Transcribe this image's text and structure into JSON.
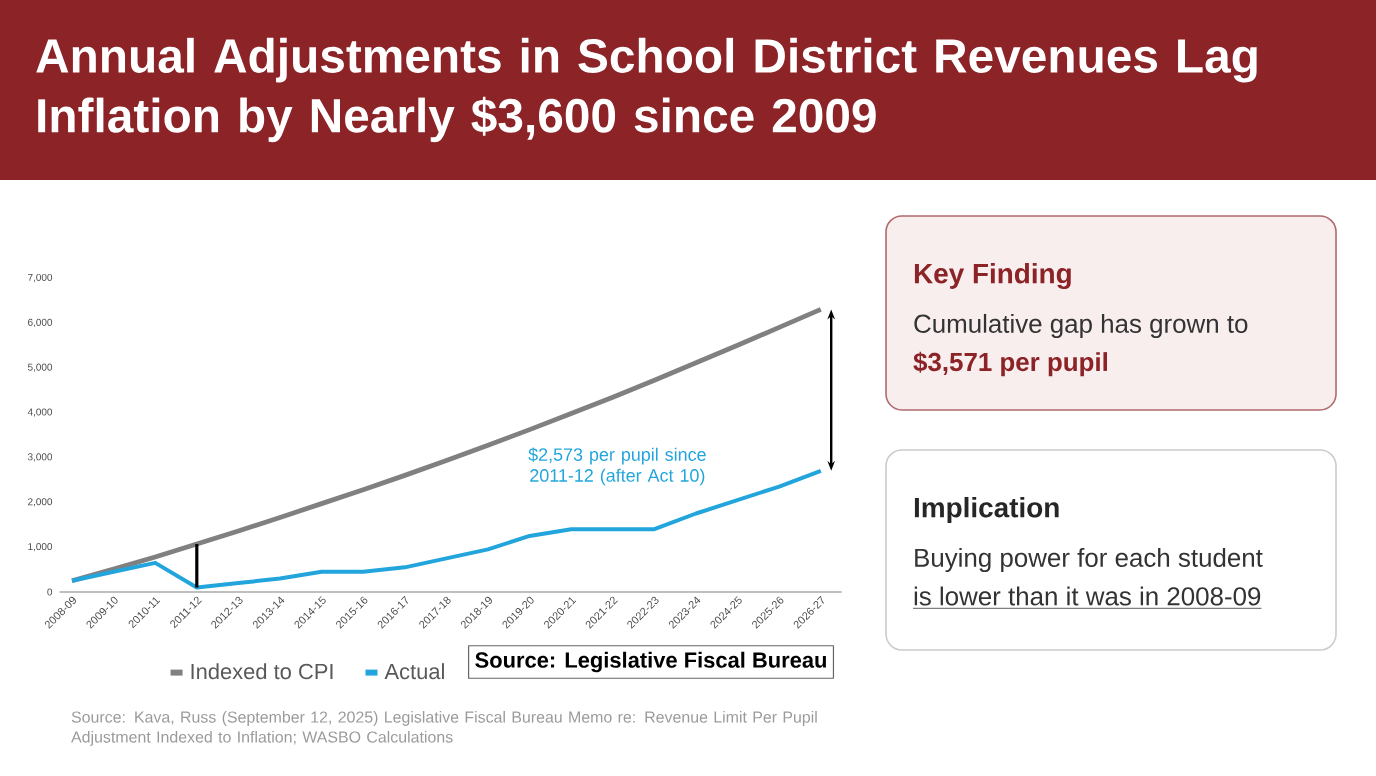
{
  "chart_data": [
    {
      "type": "line",
      "title": "Annual Adjustments in School District Revenues Lag Inflation by Nearly $3,600 since 2009",
      "categories": [
        "2008-09",
        "2009-10",
        "2010-11",
        "2011-12",
        "2012-13",
        "2013-14",
        "2014-15",
        "2015-16",
        "2016-17",
        "2017-18",
        "2018-19",
        "2019-20",
        "2020-21",
        "2021-22",
        "2022-23",
        "2023-24",
        "2024-25",
        "2025-26",
        "2026-27"
      ],
      "series": [
        {
          "name": "Indexed to CPI",
          "color": "#808080",
          "values": [
            250,
            510,
            780,
            1070,
            1360,
            1660,
            1970,
            2280,
            2600,
            2930,
            3270,
            3620,
            3980,
            4340,
            4720,
            5110,
            5500,
            5900,
            6300
          ]
        },
        {
          "name": "Actual",
          "color": "#22a5dc",
          "values": [
            250,
            450,
            650,
            100,
            200,
            300,
            450,
            450,
            550,
            750,
            950,
            1250,
            1400,
            1400,
            1400,
            1750,
            2050,
            2350,
            2700
          ],
          "errors": [
            null,
            null,
            null,
            [
              100,
              1070
            ],
            null,
            null,
            null,
            null,
            null,
            null,
            null,
            null,
            null,
            null,
            null,
            null,
            null,
            null,
            null
          ]
        }
      ],
      "ylim": [
        0,
        7000
      ],
      "yticks": [
        0,
        {
          "value": 1000,
          "label": "1,000"
        },
        {
          "value": 2000,
          "label": "2,000"
        },
        {
          "value": 3000,
          "label": "3,000"
        },
        {
          "value": 4000,
          "label": "4,000"
        },
        {
          "value": 5000,
          "label": "5,000"
        },
        {
          "value": 6000,
          "label": "6,000"
        },
        {
          "value": 7000,
          "label": "7,000"
        }
      ],
      "grid": false,
      "legend": "bottom",
      "marker": "none",
      "line_style": "solid",
      "annotations": [
        "$2,573 per pupil since 2011-12 (after Act 10)",
        "Source: Legislative Fiscal Bureau",
        "Source: Kava, Russ (September 12, 2025) Legislative Fiscal Bureau Memo re: Revenue Limit Per Pupil Adjustment Indexed to Inflation; WASBO Calculations"
      ]
    },
    {
      "type": "other",
      "title": "Key Finding",
      "annotations": [
        "Cumulative gap has grown to",
        "$3,571 per pupil"
      ]
    },
    {
      "type": "other",
      "title": "Implication",
      "annotations": [
        "Buying power for each student",
        "is lower than it was in 2008-09"
      ]
    }
  ]
}
